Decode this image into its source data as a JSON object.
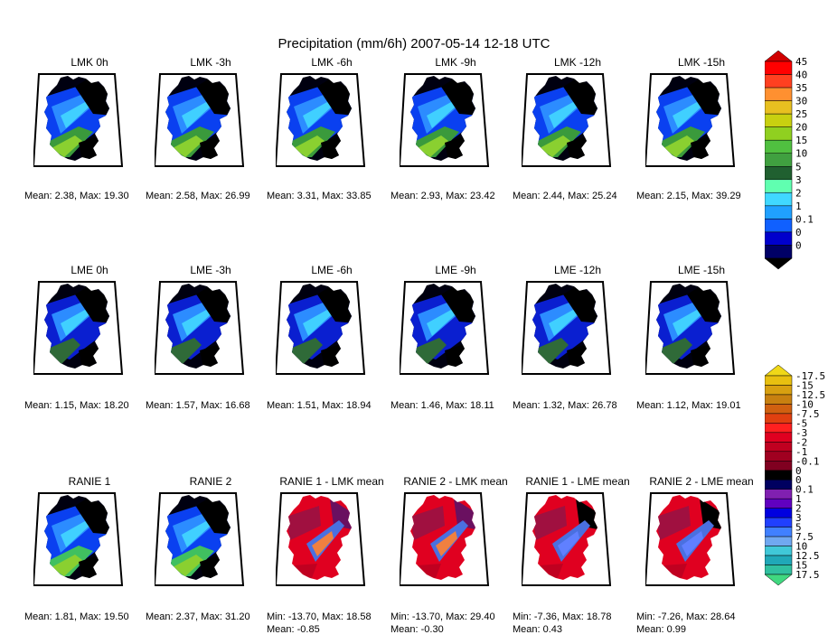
{
  "chart_data": {
    "type": "heatmap",
    "title": "Precipitation (mm/6h) 2007-05-14 12-18 UTC",
    "rows": [
      {
        "name": "LMK",
        "panels": [
          {
            "title": "LMK 0h",
            "caption": [
              "Mean: 2.38, Max: 19.30"
            ]
          },
          {
            "title": "LMK -3h",
            "caption": [
              "Mean: 2.58, Max: 26.99"
            ]
          },
          {
            "title": "LMK -6h",
            "caption": [
              "Mean: 3.31, Max: 33.85"
            ]
          },
          {
            "title": "LMK -9h",
            "caption": [
              "Mean: 2.93, Max: 23.42"
            ]
          },
          {
            "title": "LMK -12h",
            "caption": [
              "Mean: 2.44, Max: 25.24"
            ]
          },
          {
            "title": "LMK -15h",
            "caption": [
              "Mean: 2.15, Max: 39.29"
            ]
          }
        ]
      },
      {
        "name": "LME",
        "panels": [
          {
            "title": "LME 0h",
            "caption": [
              "Mean: 1.15, Max: 18.20"
            ]
          },
          {
            "title": "LME -3h",
            "caption": [
              "Mean: 1.57, Max: 16.68"
            ]
          },
          {
            "title": "LME -6h",
            "caption": [
              "Mean: 1.51, Max: 18.94"
            ]
          },
          {
            "title": "LME -9h",
            "caption": [
              "Mean: 1.46, Max: 18.11"
            ]
          },
          {
            "title": "LME -12h",
            "caption": [
              "Mean: 1.32, Max: 26.78"
            ]
          },
          {
            "title": "LME -15h",
            "caption": [
              "Mean: 1.12, Max: 19.01"
            ]
          }
        ]
      },
      {
        "name": "RANIE",
        "panels": [
          {
            "title": "RANIE 1",
            "caption": [
              "Mean: 1.81, Max: 19.50"
            ]
          },
          {
            "title": "RANIE 2",
            "caption": [
              "Mean: 2.37, Max: 31.20"
            ]
          },
          {
            "title": "RANIE 1 - LMK mean",
            "caption": [
              "Min: -13.70, Max: 18.58",
              "Mean: -0.85"
            ]
          },
          {
            "title": "RANIE 2 - LMK mean",
            "caption": [
              "Min: -13.70, Max: 29.40",
              "Mean: -0.30"
            ]
          },
          {
            "title": "RANIE 1 - LME mean",
            "caption": [
              "Min: -7.36, Max: 18.78",
              "Mean: 0.43"
            ]
          },
          {
            "title": "RANIE 2 - LME mean",
            "caption": [
              "Min: -7.26, Max: 28.64",
              "Mean: 0.99"
            ]
          }
        ]
      }
    ],
    "colorbars": [
      {
        "name": "precipitation",
        "levels": [
          "0",
          "0",
          "0.1",
          "1",
          "2",
          "3",
          "5",
          "10",
          "15",
          "20",
          "25",
          "30",
          "35",
          "40",
          "45"
        ],
        "colors": [
          "#000000",
          "#000066",
          "#0000cc",
          "#1060ff",
          "#20a0ff",
          "#40d8ff",
          "#60ffb0",
          "#206030",
          "#40a040",
          "#50c040",
          "#90d020",
          "#c8d010",
          "#e8c020",
          "#ff9030",
          "#ff4020",
          "#ff0000",
          "#d00000"
        ]
      },
      {
        "name": "difference",
        "levels": [
          "17.5",
          "15",
          "12.5",
          "10",
          "7.5",
          "5",
          "3",
          "2",
          "1",
          "0.1",
          "0",
          "0",
          "-0.1",
          "-1",
          "-2",
          "-3",
          "-5",
          "-7.5",
          "-10",
          "-12.5",
          "-15",
          "-17.5"
        ],
        "colors": [
          "#40d880",
          "#30c0a0",
          "#20a8b8",
          "#40c8d8",
          "#70a8f0",
          "#4080ff",
          "#2040ff",
          "#0000e0",
          "#6000c0",
          "#8020b0",
          "#000060",
          "#000000",
          "#800020",
          "#a00020",
          "#c00020",
          "#e00020",
          "#ff2020",
          "#e04010",
          "#d06010",
          "#c88010",
          "#d8a010",
          "#e8c010",
          "#f0d818"
        ]
      }
    ]
  }
}
